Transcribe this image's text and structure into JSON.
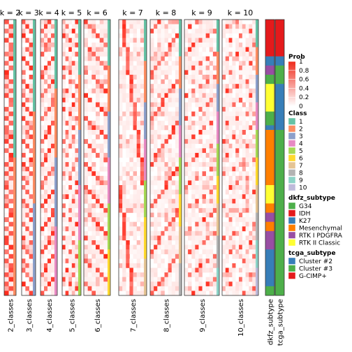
{
  "chart_data": {
    "type": "heatmap",
    "rows": 60,
    "panels": [
      {
        "title": "k = 2",
        "n": 2,
        "class_label": "2_classes"
      },
      {
        "title": "k = 3",
        "n": 3,
        "class_label": "3_classes"
      },
      {
        "title": "k = 4",
        "n": 4,
        "class_label": "4_classes"
      },
      {
        "title": "k = 5",
        "n": 5,
        "class_label": "5_classes"
      },
      {
        "title": "k = 6",
        "n": 6,
        "class_label": "6_classes"
      },
      {
        "title": "k = 7",
        "n": 7,
        "class_label": "7_classes"
      },
      {
        "title": "k = 8",
        "n": 8,
        "class_label": "8_classes"
      },
      {
        "title": "k = 9",
        "n": 9,
        "class_label": "9_classes"
      },
      {
        "title": "k = 10",
        "n": 10,
        "class_label": "10_classes"
      }
    ],
    "annotation_tracks": [
      {
        "label": "dkfz_subtype",
        "segments": [
          {
            "value": "IDH",
            "rows": 8
          },
          {
            "value": "K27",
            "rows": 2
          },
          {
            "value": "RTK I PDGFRA",
            "rows": 2
          },
          {
            "value": "G34",
            "rows": 2
          },
          {
            "value": "RTK II Classic",
            "rows": 6
          },
          {
            "value": "G34",
            "rows": 3
          },
          {
            "value": "K27",
            "rows": 1
          },
          {
            "value": "Mesenchymal",
            "rows": 12
          },
          {
            "value": "RTK II Classic",
            "rows": 4
          },
          {
            "value": "Mesenchymal",
            "rows": 2
          },
          {
            "value": "RTK I PDGFRA",
            "rows": 2
          },
          {
            "value": "Mesenchymal",
            "rows": 2
          },
          {
            "value": "RTK I PDGFRA",
            "rows": 4
          },
          {
            "value": "K27",
            "rows": 8
          },
          {
            "value": "G34",
            "rows": 2
          }
        ]
      },
      {
        "label": "tcga_subtype",
        "segments": [
          {
            "value": "G-CIMP+",
            "rows": 8
          },
          {
            "value": "Cluster #2",
            "rows": 2
          },
          {
            "value": "Cluster #3",
            "rows": 4
          },
          {
            "value": "Cluster #2",
            "rows": 10
          },
          {
            "value": "Cluster #3",
            "rows": 36
          }
        ]
      }
    ],
    "legends": [
      {
        "title": "Prob",
        "type": "gradient",
        "ticks": [
          "1",
          "0.8",
          "0.6",
          "0.4",
          "0.2",
          "0"
        ]
      },
      {
        "title": "Class",
        "type": "discrete",
        "items": [
          {
            "label": "1",
            "color": "#66c2a5"
          },
          {
            "label": "2",
            "color": "#fc8d62"
          },
          {
            "label": "3",
            "color": "#8da0cb"
          },
          {
            "label": "4",
            "color": "#e78ac3"
          },
          {
            "label": "5",
            "color": "#a6d854"
          },
          {
            "label": "6",
            "color": "#ffd92f"
          },
          {
            "label": "7",
            "color": "#e5c494"
          },
          {
            "label": "8",
            "color": "#b3b3b3"
          },
          {
            "label": "9",
            "color": "#8dd3c7"
          },
          {
            "label": "10",
            "color": "#bebada"
          }
        ]
      },
      {
        "title": "dkfz_subtype",
        "type": "discrete",
        "items": [
          {
            "label": "G34",
            "color": "#4daf4a"
          },
          {
            "label": "IDH",
            "color": "#e41a1c"
          },
          {
            "label": "K27",
            "color": "#377eb8"
          },
          {
            "label": "Mesenchymal",
            "color": "#ff7f00"
          },
          {
            "label": "RTK I PDGFRA",
            "color": "#984ea3"
          },
          {
            "label": "RTK II Classic",
            "color": "#ffff33"
          }
        ]
      },
      {
        "title": "tcga_subtype",
        "type": "discrete",
        "items": [
          {
            "label": "Cluster #2",
            "color": "#377eb8"
          },
          {
            "label": "Cluster #3",
            "color": "#4daf4a"
          },
          {
            "label": "G-CIMP+",
            "color": "#e41a1c"
          }
        ]
      }
    ],
    "colors": {
      "prob_high": "#ef2b1c",
      "prob_low": "#ffffff",
      "panel_border": "#333333"
    }
  }
}
